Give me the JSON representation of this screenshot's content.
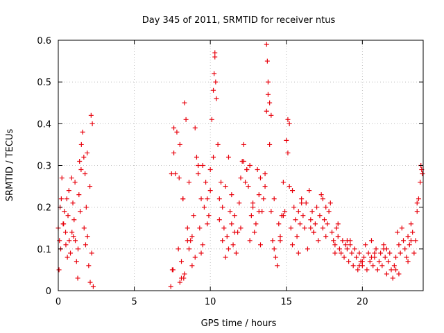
{
  "chart_data": {
    "type": "scatter",
    "title": "Day 345 of 2011, SRMTID for receiver ntus",
    "xlabel": "GPS time / hours",
    "ylabel": "SRMTID / TECUs",
    "xlim": [
      0,
      24
    ],
    "ylim": [
      0,
      0.6
    ],
    "xticks": [
      "0",
      "5",
      "10",
      "15",
      "20"
    ],
    "xtick_values": [
      0,
      5,
      10,
      15,
      20
    ],
    "yticks": [
      "0",
      "0.1",
      "0.2",
      "0.3",
      "0.4",
      "0.5",
      "0.6"
    ],
    "ytick_values": [
      0,
      0.1,
      0.2,
      0.3,
      0.4,
      0.5,
      0.6
    ],
    "grid": true,
    "marker": "+",
    "color": "#e8000b",
    "series": [
      {
        "name": "SRMTID",
        "x": [
          0.0,
          0.08,
          0.16,
          0.24,
          0.32,
          0.4,
          0.48,
          0.56,
          0.64,
          0.72,
          0.8,
          0.88,
          0.96,
          1.04,
          1.12,
          1.2,
          1.28,
          1.36,
          1.44,
          1.52,
          1.6,
          1.68,
          1.76,
          1.84,
          1.92,
          2.0,
          2.08,
          2.16,
          2.24,
          2.3,
          0.05,
          0.2,
          0.35,
          0.5,
          0.7,
          0.9,
          1.1,
          1.3,
          1.5,
          1.7,
          1.9,
          2.1,
          0.12,
          0.6,
          1.0,
          1.4,
          1.8,
          2.2,
          7.4,
          7.5,
          7.6,
          7.7,
          7.8,
          7.9,
          8.0,
          8.1,
          8.2,
          8.3,
          8.4,
          8.5,
          8.6,
          8.7,
          8.8,
          8.9,
          9.0,
          9.1,
          9.2,
          9.3,
          9.4,
          9.5,
          9.6,
          9.7,
          9.8,
          9.9,
          10.0,
          10.1,
          10.2,
          10.3,
          10.4,
          10.5,
          10.6,
          10.7,
          10.8,
          10.9,
          11.0,
          11.1,
          11.2,
          11.3,
          11.4,
          11.5,
          11.6,
          11.7,
          11.8,
          11.9,
          12.0,
          12.1,
          12.2,
          12.3,
          12.4,
          12.5,
          12.6,
          12.7,
          12.8,
          12.9,
          13.0,
          13.1,
          13.2,
          13.3,
          13.4,
          13.5,
          13.6,
          13.7,
          13.8,
          13.9,
          14.0,
          14.1,
          14.2,
          14.3,
          14.4,
          14.5,
          14.6,
          14.7,
          14.8,
          14.9,
          15.0,
          15.1,
          15.2,
          15.3,
          15.4,
          15.5,
          15.6,
          15.7,
          15.8,
          15.9,
          16.0,
          16.1,
          16.2,
          16.3,
          16.4,
          16.5,
          16.6,
          16.7,
          16.8,
          16.9,
          17.0,
          17.1,
          17.2,
          17.3,
          17.4,
          17.5,
          17.6,
          17.7,
          17.8,
          17.9,
          18.0,
          18.1,
          18.2,
          18.3,
          18.4,
          18.5,
          18.6,
          18.7,
          18.8,
          18.9,
          19.0,
          19.1,
          19.2,
          19.3,
          19.4,
          19.5,
          19.6,
          19.7,
          19.8,
          19.9,
          20.0,
          20.1,
          20.2,
          20.3,
          20.4,
          20.5,
          20.6,
          20.7,
          20.8,
          20.9,
          21.0,
          21.1,
          21.2,
          21.3,
          21.4,
          21.5,
          21.6,
          21.7,
          21.8,
          21.9,
          22.0,
          22.1,
          22.2,
          22.3,
          22.4,
          22.5,
          22.6,
          22.7,
          22.8,
          22.9,
          23.0,
          23.1,
          23.2,
          23.3,
          23.4,
          23.5,
          23.6,
          23.7,
          23.8,
          23.9,
          7.6,
          8.0,
          8.2,
          8.5,
          9.0,
          9.5,
          10.0,
          10.25,
          10.3,
          10.35,
          11.2,
          12.2,
          12.4,
          13.7,
          13.75,
          13.8,
          13.9,
          14.0,
          15.1,
          15.2,
          8.3,
          8.6,
          9.2,
          9.8,
          10.6,
          11.0,
          11.6,
          12.8,
          13.3,
          14.6,
          15.8,
          16.6,
          17.4,
          18.2,
          19.0,
          19.8,
          20.6,
          21.4,
          22.2,
          23.0,
          8.1,
          8.8,
          9.4,
          10.2,
          10.8,
          11.4,
          12.0,
          12.6,
          13.2,
          13.6,
          14.2,
          14.8,
          15.4,
          16.0,
          16.8,
          17.6,
          18.4,
          19.2,
          20.0,
          20.8,
          21.6,
          22.4,
          23.2,
          23.6,
          23.85,
          23.95,
          7.45,
          7.55,
          7.95,
          8.25
        ],
        "y": [
          0.15,
          0.12,
          0.1,
          0.27,
          0.16,
          0.19,
          0.14,
          0.22,
          0.18,
          0.12,
          0.09,
          0.27,
          0.21,
          0.17,
          0.12,
          0.07,
          0.03,
          0.23,
          0.19,
          0.35,
          0.38,
          0.32,
          0.28,
          0.2,
          0.13,
          0.06,
          0.25,
          0.42,
          0.4,
          0.01,
          0.05,
          0.22,
          0.16,
          0.11,
          0.24,
          0.14,
          0.26,
          0.1,
          0.29,
          0.15,
          0.33,
          0.02,
          0.2,
          0.08,
          0.13,
          0.31,
          0.11,
          0.09,
          0.01,
          0.05,
          0.33,
          0.28,
          0.38,
          0.1,
          0.02,
          0.07,
          0.22,
          0.45,
          0.41,
          0.15,
          0.26,
          0.12,
          0.06,
          0.18,
          0.08,
          0.32,
          0.28,
          0.15,
          0.22,
          0.11,
          0.2,
          0.26,
          0.16,
          0.18,
          0.29,
          0.41,
          0.48,
          0.56,
          0.46,
          0.35,
          0.22,
          0.26,
          0.12,
          0.15,
          0.08,
          0.13,
          0.1,
          0.19,
          0.16,
          0.11,
          0.18,
          0.09,
          0.14,
          0.21,
          0.15,
          0.31,
          0.35,
          0.26,
          0.29,
          0.25,
          0.12,
          0.18,
          0.21,
          0.14,
          0.16,
          0.29,
          0.23,
          0.11,
          0.19,
          0.22,
          0.28,
          0.43,
          0.47,
          0.35,
          0.19,
          0.12,
          0.1,
          0.08,
          0.06,
          0.16,
          0.13,
          0.18,
          0.26,
          0.19,
          0.36,
          0.33,
          0.25,
          0.15,
          0.11,
          0.2,
          0.17,
          0.13,
          0.19,
          0.16,
          0.22,
          0.18,
          0.15,
          0.21,
          0.1,
          0.24,
          0.17,
          0.19,
          0.14,
          0.16,
          0.2,
          0.12,
          0.18,
          0.23,
          0.15,
          0.17,
          0.13,
          0.16,
          0.19,
          0.21,
          0.14,
          0.12,
          0.11,
          0.15,
          0.13,
          0.1,
          0.09,
          0.12,
          0.08,
          0.11,
          0.1,
          0.07,
          0.12,
          0.09,
          0.06,
          0.1,
          0.08,
          0.05,
          0.09,
          0.07,
          0.06,
          0.08,
          0.11,
          0.05,
          0.09,
          0.07,
          0.12,
          0.06,
          0.08,
          0.1,
          0.05,
          0.07,
          0.09,
          0.06,
          0.11,
          0.08,
          0.04,
          0.07,
          0.09,
          0.05,
          0.03,
          0.06,
          0.08,
          0.14,
          0.11,
          0.09,
          0.15,
          0.12,
          0.1,
          0.08,
          0.13,
          0.11,
          0.16,
          0.14,
          0.09,
          0.12,
          0.19,
          0.22,
          0.26,
          0.29,
          0.39,
          0.35,
          0.22,
          0.12,
          0.39,
          0.3,
          0.24,
          0.52,
          0.57,
          0.5,
          0.32,
          0.31,
          0.29,
          0.59,
          0.55,
          0.5,
          0.45,
          0.42,
          0.41,
          0.4,
          0.04,
          0.1,
          0.3,
          0.22,
          0.17,
          0.25,
          0.14,
          0.2,
          0.27,
          0.12,
          0.09,
          0.15,
          0.22,
          0.09,
          0.12,
          0.06,
          0.08,
          0.1,
          0.05,
          0.07,
          0.03,
          0.13,
          0.09,
          0.32,
          0.2,
          0.23,
          0.27,
          0.3,
          0.19,
          0.25,
          0.22,
          0.18,
          0.24,
          0.21,
          0.14,
          0.2,
          0.16,
          0.11,
          0.07,
          0.09,
          0.1,
          0.04,
          0.12,
          0.21,
          0.3,
          0.28,
          0.28,
          0.05,
          0.27,
          0.03
        ]
      }
    ]
  }
}
